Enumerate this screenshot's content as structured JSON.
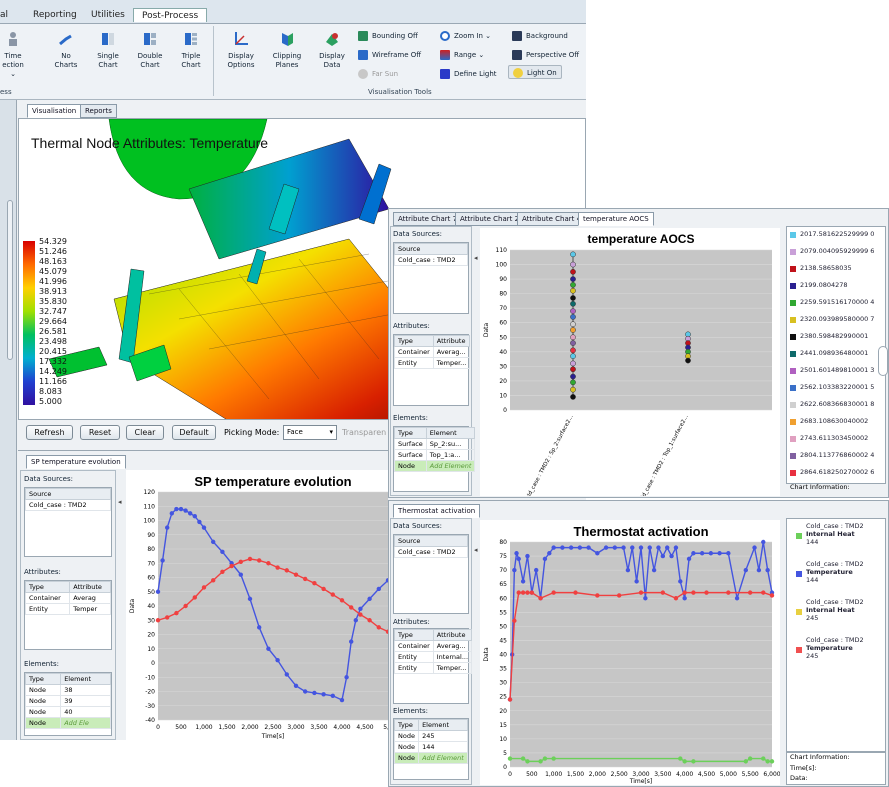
{
  "ribbon": {
    "tabs": [
      "al",
      "Reporting",
      "Utilities",
      "Post-Process"
    ],
    "time_line1": "Time",
    "time_line2": "ection",
    "chart_buttons": [
      {
        "line1": "No",
        "line2": "Charts"
      },
      {
        "line1": "Single",
        "line2": "Chart"
      },
      {
        "line1": "Double",
        "line2": "Chart"
      },
      {
        "line1": "Triple",
        "line2": "Chart"
      }
    ],
    "vis_buttons": [
      {
        "line1": "Display",
        "line2": "Options"
      },
      {
        "line1": "Clipping",
        "line2": "Planes"
      },
      {
        "line1": "Display",
        "line2": "Data"
      }
    ],
    "small_buttons": [
      "Bounding Off",
      "Wireframe Off",
      "Far Sun",
      "Zoom In",
      "Range",
      "Define Light",
      "Background",
      "Perspective Off",
      "Light On"
    ],
    "group_left": "ess",
    "group_vis": "Visualisation Tools"
  },
  "left_window": {
    "tabs": [
      "Visualisation",
      "Reports"
    ],
    "title": "Thermal Node Attributes: Temperature",
    "scale": [
      "54.329",
      "51.246",
      "48.163",
      "45.079",
      "41.996",
      "38.913",
      "35.830",
      "32.747",
      "29.664",
      "26.581",
      "23.498",
      "20.415",
      "17.332",
      "14.249",
      "11.166",
      "8.083",
      "5.000"
    ],
    "buttons": [
      "Refresh",
      "Reset",
      "Clear",
      "Default"
    ],
    "picking_label": "Picking Mode:",
    "picking_value": "Face",
    "transparency": "Transparen"
  },
  "sp_panel": {
    "tab": "SP temperature evolution",
    "data_sources_label": "Data Sources:",
    "source_header": "Source",
    "source_value": "Cold_case : TMD2",
    "attributes_label": "Attributes:",
    "attr_headers": [
      "Type",
      "Attribute"
    ],
    "attr_rows": [
      [
        "Container",
        "Averag"
      ],
      [
        "Entity",
        "Temper"
      ]
    ],
    "elements_label": "Elements:",
    "elem_headers": [
      "Type",
      "Element"
    ],
    "elem_rows": [
      [
        "Node",
        "38"
      ],
      [
        "Node",
        "39"
      ],
      [
        "Node",
        "40"
      ],
      [
        "Node",
        "Add Ele"
      ]
    ]
  },
  "right_top": {
    "tabs": [
      "Attribute Chart 7",
      "Attribute Chart 2",
      "Attribute Chart 4",
      "temperature AOCS"
    ],
    "data_sources_label": "Data Sources:",
    "source_header": "Source",
    "source_value": "Cold_case : TMD2",
    "attributes_label": "Attributes:",
    "attr_headers": [
      "Type",
      "Attribute"
    ],
    "attr_rows": [
      [
        "Container",
        "Averag..."
      ],
      [
        "Entity",
        "Temper..."
      ]
    ],
    "elements_label": "Elements:",
    "elem_headers": [
      "Type",
      "Element"
    ],
    "elem_rows": [
      [
        "Surface",
        "Sp_2:su..."
      ],
      [
        "Surface",
        "Top_1:a..."
      ],
      [
        "Node",
        "Add Element"
      ]
    ],
    "legend": [
      {
        "text": "2017.581622529999 0",
        "color": "#5bc8e8"
      },
      {
        "text": "2079.004095929999 6",
        "color": "#c9a0d8"
      },
      {
        "text": "2138.58658035",
        "color": "#c0121a"
      },
      {
        "text": "2199.0804278",
        "color": "#2a2090"
      },
      {
        "text": "2259.591516170000 4",
        "color": "#31a832"
      },
      {
        "text": "2320.093989580000 7",
        "color": "#d8c020"
      },
      {
        "text": "2380.598482990001",
        "color": "#101010"
      },
      {
        "text": "2441.098936480001",
        "color": "#0e6a6a"
      },
      {
        "text": "2501.601489810001 3",
        "color": "#b060c0"
      },
      {
        "text": "2562.103383220001 5",
        "color": "#3a70c8"
      },
      {
        "text": "2622.608366830001 8",
        "color": "#d0d0d0"
      },
      {
        "text": "2683.108630040002",
        "color": "#f0a030"
      },
      {
        "text": "2743.611303450002",
        "color": "#e0a0c0"
      },
      {
        "text": "2804.113776860002 4",
        "color": "#8060a0"
      },
      {
        "text": "2864.618250270002 6",
        "color": "#e83040"
      }
    ],
    "chart_info": "Chart Information:"
  },
  "right_bottom": {
    "tab": "Thermostat activation",
    "data_sources_label": "Data Sources:",
    "source_header": "Source",
    "source_value": "Cold_case : TMD2",
    "attributes_label": "Attributes:",
    "attr_headers": [
      "Type",
      "Attribute"
    ],
    "attr_rows": [
      [
        "Container",
        "Averag..."
      ],
      [
        "Entity",
        "Internal..."
      ],
      [
        "Entity",
        "Temper..."
      ]
    ],
    "elements_label": "Elements:",
    "elem_headers": [
      "Type",
      "Element"
    ],
    "elem_rows": [
      [
        "Node",
        "245"
      ],
      [
        "Node",
        "144"
      ],
      [
        "Node",
        "Add Element"
      ]
    ],
    "legend": [
      {
        "l1": "Cold_case : TMD2",
        "l2": "Internal Heat",
        "l3": "144",
        "color": "#6cd05a"
      },
      {
        "l1": "Cold_case : TMD2",
        "l2": "Temperature",
        "l3": "144",
        "color": "#4455e0"
      },
      {
        "l1": "Cold_case : TMD2",
        "l2": "Internal Heat",
        "l3": "245",
        "color": "#e8d040"
      },
      {
        "l1": "Cold_case : TMD2",
        "l2": "Temperature",
        "l3": "245",
        "color": "#f05050"
      }
    ],
    "chart_info": "Chart Information:",
    "time_label": "Time[s]:",
    "data_label": "Data:"
  },
  "chart_data": [
    {
      "type": "line",
      "title": "SP temperature evolution",
      "xlabel": "Time[s]",
      "ylabel": "Data",
      "xlim": [
        0,
        5000
      ],
      "ylim": [
        -40,
        120
      ],
      "xticks": [
        "0",
        "500",
        "1,000",
        "1,500",
        "2,000",
        "2,500",
        "3,000",
        "3,500",
        "4,000",
        "4,500",
        "5,0"
      ],
      "yticks": [
        "120",
        "110",
        "100",
        "90",
        "80",
        "70",
        "60",
        "50",
        "40",
        "30",
        "20",
        "10",
        "0",
        "-10",
        "-20",
        "-30",
        "-40"
      ],
      "series": [
        {
          "color": "#4455e0",
          "x": [
            0,
            100,
            200,
            300,
            400,
            500,
            600,
            700,
            800,
            900,
            1000,
            1200,
            1400,
            1600,
            1800,
            2000,
            2200,
            2400,
            2600,
            2800,
            3000,
            3200,
            3400,
            3600,
            3800,
            4000,
            4100,
            4200,
            4300,
            4400,
            4600,
            4800,
            5000
          ],
          "y": [
            50,
            72,
            95,
            105,
            108,
            108,
            107,
            105,
            103,
            99,
            95,
            85,
            78,
            70,
            62,
            45,
            25,
            10,
            2,
            -8,
            -16,
            -20,
            -21,
            -22,
            -23,
            -26,
            -10,
            15,
            30,
            38,
            45,
            52,
            58
          ]
        },
        {
          "color": "#f04040",
          "x": [
            0,
            200,
            400,
            600,
            800,
            1000,
            1200,
            1400,
            1600,
            1800,
            2000,
            2200,
            2400,
            2600,
            2800,
            3000,
            3200,
            3400,
            3600,
            3800,
            4000,
            4200,
            4400,
            4600,
            4800,
            5000
          ],
          "y": [
            30,
            32,
            35,
            40,
            46,
            53,
            58,
            64,
            68,
            71,
            73,
            72,
            70,
            67,
            65,
            62,
            59,
            56,
            52,
            48,
            44,
            39,
            34,
            30,
            25,
            22
          ]
        }
      ]
    },
    {
      "type": "scatter",
      "title": "temperature AOCS",
      "ylabel": "Data",
      "ylim": [
        0,
        110
      ],
      "yticks": [
        "110",
        "100",
        "90",
        "80",
        "70",
        "60",
        "50",
        "40",
        "30",
        "20",
        "10",
        "0"
      ],
      "categories": [
        "Cold_case : TMD2 : Sp_2:surface2...",
        "Cold_case : TMD2 : Top_1:surface2..."
      ],
      "series": [
        {
          "name": "Sp_2",
          "y": [
            107,
            100,
            95,
            90,
            86,
            82,
            77,
            73,
            68,
            64,
            59,
            55,
            50,
            46,
            41,
            37,
            32,
            28,
            23,
            19,
            14,
            9
          ]
        },
        {
          "name": "Top_1",
          "y": [
            52,
            49,
            46,
            43,
            40,
            37,
            34
          ]
        }
      ]
    },
    {
      "type": "line",
      "title": "Thermostat activation",
      "xlabel": "Time[s]",
      "ylabel": "Data",
      "xlim": [
        0,
        6000
      ],
      "ylim": [
        0,
        80
      ],
      "xticks": [
        "0",
        "500",
        "1,000",
        "1,500",
        "2,000",
        "2,500",
        "3,000",
        "3,500",
        "4,000",
        "4,500",
        "5,000",
        "5,500",
        "6,000"
      ],
      "yticks": [
        "80",
        "75",
        "70",
        "65",
        "60",
        "55",
        "50",
        "45",
        "40",
        "35",
        "30",
        "25",
        "20",
        "15",
        "10",
        "5",
        "0"
      ],
      "series": [
        {
          "name": "Temperature 144",
          "color": "#4455e0",
          "x": [
            0,
            50,
            100,
            150,
            200,
            300,
            400,
            500,
            600,
            700,
            800,
            900,
            1000,
            1200,
            1400,
            1600,
            1800,
            2000,
            2200,
            2400,
            2600,
            2700,
            2800,
            2900,
            3000,
            3100,
            3200,
            3300,
            3400,
            3500,
            3600,
            3700,
            3800,
            3900,
            4000,
            4100,
            4200,
            4400,
            4600,
            4800,
            5000,
            5200,
            5400,
            5600,
            5700,
            5800,
            5900,
            6000
          ],
          "y": [
            24,
            40,
            70,
            76,
            74,
            66,
            75,
            62,
            70,
            60,
            74,
            76,
            78,
            78,
            78,
            78,
            78,
            76,
            78,
            78,
            78,
            70,
            78,
            66,
            78,
            60,
            78,
            70,
            78,
            75,
            78,
            75,
            78,
            66,
            60,
            74,
            76,
            76,
            76,
            76,
            76,
            60,
            70,
            78,
            70,
            80,
            70,
            62
          ]
        },
        {
          "name": "Temperature 245",
          "color": "#f04040",
          "x": [
            0,
            100,
            200,
            300,
            400,
            500,
            700,
            1000,
            1500,
            2000,
            2500,
            3000,
            3500,
            3800,
            4000,
            4200,
            4500,
            5000,
            5500,
            5800,
            6000
          ],
          "y": [
            24,
            52,
            62,
            62,
            62,
            62,
            60,
            62,
            62,
            61,
            61,
            62,
            62,
            60,
            62,
            62,
            62,
            62,
            62,
            62,
            61
          ]
        },
        {
          "name": "Internal Heat 144",
          "color": "#6cd05a",
          "x": [
            0,
            300,
            400,
            700,
            800,
            1000,
            3900,
            4000,
            4200,
            5400,
            5500,
            5800,
            5900,
            6000
          ],
          "y": [
            3,
            3,
            2,
            2,
            3,
            3,
            3,
            2,
            2,
            2,
            3,
            3,
            2,
            2
          ]
        }
      ]
    }
  ]
}
